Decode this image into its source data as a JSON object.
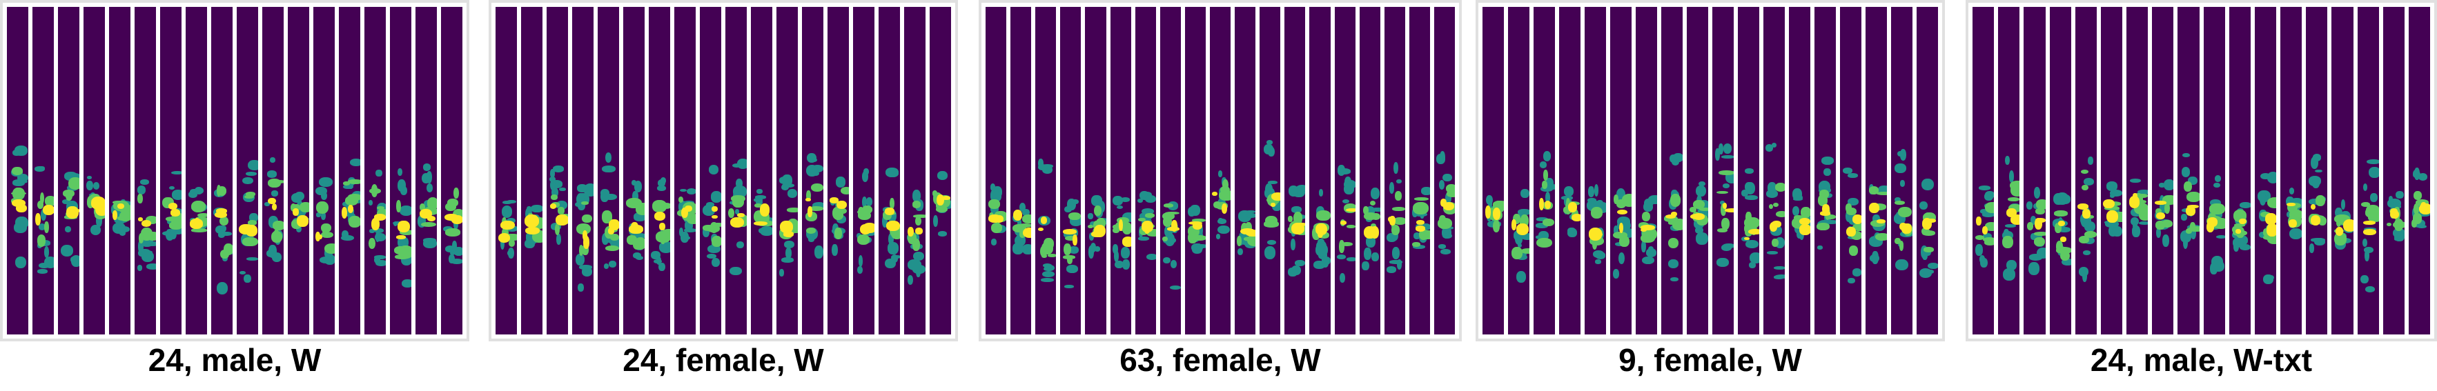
{
  "figure": {
    "panels": [
      {
        "caption": "24, male, W",
        "strips": 18
      },
      {
        "caption": "24, female, W",
        "strips": 18
      },
      {
        "caption": "63, female, W",
        "strips": 19
      },
      {
        "caption": "9, female, W",
        "strips": 18
      },
      {
        "caption": "24, male, W-txt",
        "strips": 18
      }
    ],
    "colors": {
      "background": "#440154",
      "mid": "#21918c",
      "bright": "#5ec962",
      "peak": "#fde725",
      "frame": "#e0e0e0"
    }
  }
}
